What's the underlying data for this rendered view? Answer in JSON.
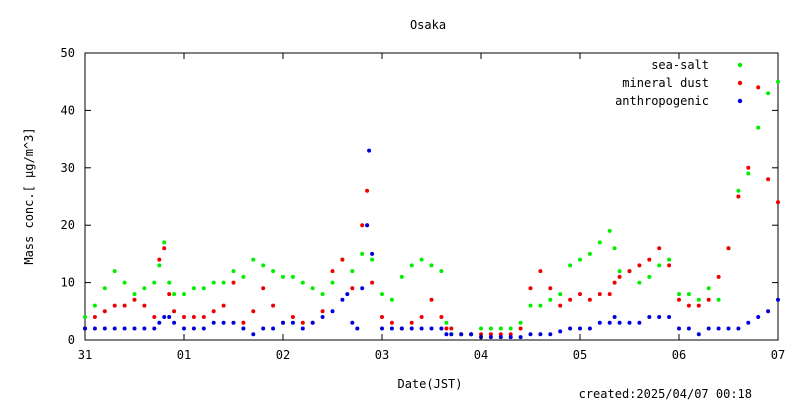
{
  "chart_data": {
    "type": "scatter",
    "title": "Osaka",
    "xlabel": "Date(JST)",
    "ylabel": "Mass conc.[ μg/m^3]",
    "footer": "created:2025/04/07 00:18",
    "x_unit": "day",
    "xlim": [
      0,
      7
    ],
    "ylim": [
      0,
      50
    ],
    "x_ticks": [
      {
        "x": 0,
        "label": "31"
      },
      {
        "x": 1,
        "label": "01"
      },
      {
        "x": 2,
        "label": "02"
      },
      {
        "x": 3,
        "label": "03"
      },
      {
        "x": 4,
        "label": "04"
      },
      {
        "x": 5,
        "label": "05"
      },
      {
        "x": 6,
        "label": "06"
      },
      {
        "x": 7,
        "label": "07"
      }
    ],
    "y_ticks": [
      0,
      10,
      20,
      30,
      40,
      50
    ],
    "legend_position": "top-right",
    "series": [
      {
        "name": "sea-salt",
        "color": "#00ee00",
        "points": [
          [
            0.0,
            4
          ],
          [
            0.1,
            6
          ],
          [
            0.2,
            9
          ],
          [
            0.3,
            12
          ],
          [
            0.4,
            10
          ],
          [
            0.5,
            8
          ],
          [
            0.6,
            9
          ],
          [
            0.7,
            10
          ],
          [
            0.75,
            13
          ],
          [
            0.8,
            17
          ],
          [
            0.85,
            10
          ],
          [
            0.9,
            8
          ],
          [
            1.0,
            8
          ],
          [
            1.1,
            9
          ],
          [
            1.2,
            9
          ],
          [
            1.3,
            10
          ],
          [
            1.4,
            10
          ],
          [
            1.5,
            12
          ],
          [
            1.6,
            11
          ],
          [
            1.7,
            14
          ],
          [
            1.8,
            13
          ],
          [
            1.9,
            12
          ],
          [
            2.0,
            11
          ],
          [
            2.1,
            11
          ],
          [
            2.2,
            10
          ],
          [
            2.3,
            9
          ],
          [
            2.4,
            8
          ],
          [
            2.5,
            10
          ],
          [
            2.6,
            14
          ],
          [
            2.7,
            12
          ],
          [
            2.8,
            15
          ],
          [
            2.85,
            20
          ],
          [
            2.9,
            14
          ],
          [
            3.0,
            8
          ],
          [
            3.1,
            7
          ],
          [
            3.2,
            11
          ],
          [
            3.3,
            13
          ],
          [
            3.4,
            14
          ],
          [
            3.5,
            13
          ],
          [
            3.6,
            12
          ],
          [
            3.65,
            3
          ],
          [
            3.7,
            1
          ],
          [
            3.8,
            1
          ],
          [
            3.9,
            1
          ],
          [
            4.0,
            2
          ],
          [
            4.1,
            2
          ],
          [
            4.2,
            2
          ],
          [
            4.3,
            2
          ],
          [
            4.4,
            3
          ],
          [
            4.5,
            6
          ],
          [
            4.6,
            6
          ],
          [
            4.7,
            7
          ],
          [
            4.8,
            8
          ],
          [
            4.9,
            13
          ],
          [
            5.0,
            14
          ],
          [
            5.1,
            15
          ],
          [
            5.2,
            17
          ],
          [
            5.3,
            19
          ],
          [
            5.35,
            16
          ],
          [
            5.4,
            12
          ],
          [
            5.5,
            12
          ],
          [
            5.6,
            10
          ],
          [
            5.7,
            11
          ],
          [
            5.8,
            13
          ],
          [
            5.9,
            14
          ],
          [
            6.0,
            8
          ],
          [
            6.1,
            8
          ],
          [
            6.2,
            7
          ],
          [
            6.3,
            9
          ],
          [
            6.4,
            7
          ],
          [
            6.5,
            16
          ],
          [
            6.6,
            26
          ],
          [
            6.7,
            29
          ],
          [
            6.8,
            37
          ],
          [
            6.9,
            43
          ],
          [
            7.0,
            45
          ]
        ]
      },
      {
        "name": "mineral dust",
        "color": "#ee0000",
        "points": [
          [
            0.0,
            2
          ],
          [
            0.1,
            4
          ],
          [
            0.2,
            5
          ],
          [
            0.3,
            6
          ],
          [
            0.4,
            6
          ],
          [
            0.5,
            7
          ],
          [
            0.6,
            6
          ],
          [
            0.7,
            4
          ],
          [
            0.75,
            14
          ],
          [
            0.8,
            16
          ],
          [
            0.85,
            8
          ],
          [
            0.9,
            5
          ],
          [
            1.0,
            4
          ],
          [
            1.1,
            4
          ],
          [
            1.2,
            4
          ],
          [
            1.3,
            5
          ],
          [
            1.4,
            6
          ],
          [
            1.5,
            10
          ],
          [
            1.6,
            3
          ],
          [
            1.7,
            5
          ],
          [
            1.8,
            9
          ],
          [
            1.9,
            6
          ],
          [
            2.0,
            3
          ],
          [
            2.1,
            4
          ],
          [
            2.2,
            3
          ],
          [
            2.3,
            3
          ],
          [
            2.4,
            5
          ],
          [
            2.5,
            12
          ],
          [
            2.6,
            14
          ],
          [
            2.7,
            9
          ],
          [
            2.8,
            20
          ],
          [
            2.85,
            26
          ],
          [
            2.9,
            10
          ],
          [
            3.0,
            4
          ],
          [
            3.1,
            3
          ],
          [
            3.2,
            2
          ],
          [
            3.3,
            3
          ],
          [
            3.4,
            4
          ],
          [
            3.5,
            7
          ],
          [
            3.6,
            4
          ],
          [
            3.65,
            2
          ],
          [
            3.7,
            2
          ],
          [
            3.8,
            1
          ],
          [
            3.9,
            1
          ],
          [
            4.0,
            1
          ],
          [
            4.1,
            1
          ],
          [
            4.2,
            1
          ],
          [
            4.3,
            1
          ],
          [
            4.4,
            2
          ],
          [
            4.5,
            9
          ],
          [
            4.6,
            12
          ],
          [
            4.7,
            9
          ],
          [
            4.8,
            6
          ],
          [
            4.9,
            7
          ],
          [
            5.0,
            8
          ],
          [
            5.1,
            7
          ],
          [
            5.2,
            8
          ],
          [
            5.3,
            8
          ],
          [
            5.35,
            10
          ],
          [
            5.4,
            11
          ],
          [
            5.5,
            12
          ],
          [
            5.6,
            13
          ],
          [
            5.7,
            14
          ],
          [
            5.8,
            16
          ],
          [
            5.9,
            13
          ],
          [
            6.0,
            7
          ],
          [
            6.1,
            6
          ],
          [
            6.2,
            6
          ],
          [
            6.3,
            7
          ],
          [
            6.4,
            11
          ],
          [
            6.5,
            16
          ],
          [
            6.6,
            25
          ],
          [
            6.7,
            30
          ],
          [
            6.8,
            44
          ],
          [
            6.9,
            28
          ],
          [
            7.0,
            24
          ]
        ]
      },
      {
        "name": "anthropogenic",
        "color": "#0000dd",
        "points": [
          [
            0.0,
            2
          ],
          [
            0.1,
            2
          ],
          [
            0.2,
            2
          ],
          [
            0.3,
            2
          ],
          [
            0.4,
            2
          ],
          [
            0.5,
            2
          ],
          [
            0.6,
            2
          ],
          [
            0.7,
            2
          ],
          [
            0.75,
            3
          ],
          [
            0.8,
            4
          ],
          [
            0.85,
            4
          ],
          [
            0.9,
            3
          ],
          [
            1.0,
            2
          ],
          [
            1.1,
            2
          ],
          [
            1.2,
            2
          ],
          [
            1.3,
            3
          ],
          [
            1.4,
            3
          ],
          [
            1.5,
            3
          ],
          [
            1.6,
            2
          ],
          [
            1.7,
            1
          ],
          [
            1.8,
            2
          ],
          [
            1.9,
            2
          ],
          [
            2.0,
            3
          ],
          [
            2.1,
            3
          ],
          [
            2.2,
            2
          ],
          [
            2.3,
            3
          ],
          [
            2.4,
            4
          ],
          [
            2.5,
            5
          ],
          [
            2.6,
            7
          ],
          [
            2.65,
            8
          ],
          [
            2.7,
            3
          ],
          [
            2.75,
            2
          ],
          [
            2.8,
            9
          ],
          [
            2.85,
            20
          ],
          [
            2.87,
            33
          ],
          [
            2.9,
            15
          ],
          [
            3.0,
            2
          ],
          [
            3.1,
            2
          ],
          [
            3.2,
            2
          ],
          [
            3.3,
            2
          ],
          [
            3.4,
            2
          ],
          [
            3.5,
            2
          ],
          [
            3.6,
            2
          ],
          [
            3.65,
            1
          ],
          [
            3.7,
            1
          ],
          [
            3.8,
            1
          ],
          [
            3.9,
            1
          ],
          [
            4.0,
            0.5
          ],
          [
            4.1,
            0.5
          ],
          [
            4.2,
            0.5
          ],
          [
            4.3,
            0.5
          ],
          [
            4.4,
            0.5
          ],
          [
            4.5,
            1
          ],
          [
            4.6,
            1
          ],
          [
            4.7,
            1
          ],
          [
            4.8,
            1.5
          ],
          [
            4.9,
            2
          ],
          [
            5.0,
            2
          ],
          [
            5.1,
            2
          ],
          [
            5.2,
            3
          ],
          [
            5.3,
            3
          ],
          [
            5.35,
            4
          ],
          [
            5.4,
            3
          ],
          [
            5.5,
            3
          ],
          [
            5.6,
            3
          ],
          [
            5.7,
            4
          ],
          [
            5.8,
            4
          ],
          [
            5.9,
            4
          ],
          [
            6.0,
            2
          ],
          [
            6.1,
            2
          ],
          [
            6.2,
            1
          ],
          [
            6.3,
            2
          ],
          [
            6.4,
            2
          ],
          [
            6.5,
            2
          ],
          [
            6.6,
            2
          ],
          [
            6.7,
            3
          ],
          [
            6.8,
            4
          ],
          [
            6.9,
            5
          ],
          [
            7.0,
            7
          ]
        ]
      }
    ]
  }
}
